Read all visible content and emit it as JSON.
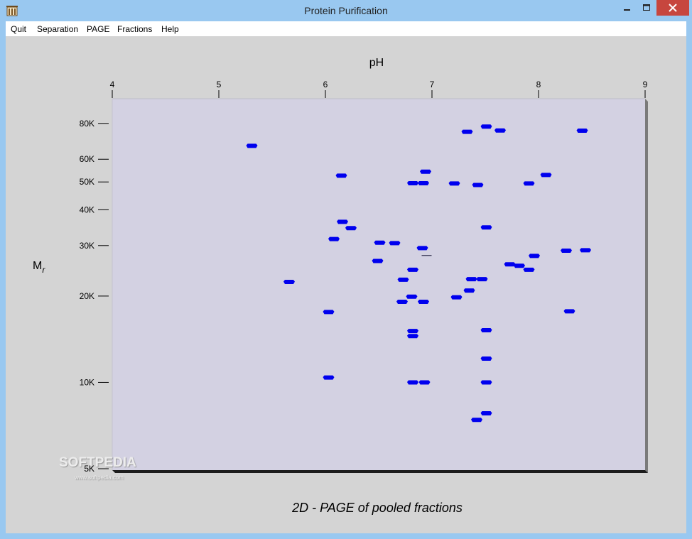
{
  "window": {
    "title": "Protein Purification"
  },
  "icons": {
    "app": "protein-app-icon",
    "minimize": "minimize-icon",
    "maximize": "maximize-icon",
    "close": "close-icon"
  },
  "menu": {
    "items": [
      {
        "label": "Quit"
      },
      {
        "label": "Separation"
      },
      {
        "label": "PAGE"
      },
      {
        "label": "Fractions"
      },
      {
        "label": "Help"
      }
    ]
  },
  "watermark": {
    "text": "SOFTPEDIA",
    "sub": "www.softpedia.com"
  },
  "chart_data": {
    "type": "scatter",
    "title": "2D - PAGE of pooled fractions",
    "xlabel": "pH",
    "ylabel": "M",
    "ylabel_sub": "r",
    "xlim": [
      4,
      9
    ],
    "ylim_log": [
      5000,
      100000
    ],
    "y_scale": "log",
    "x_ticks": [
      {
        "value": 4,
        "label": "4"
      },
      {
        "value": 5,
        "label": "5"
      },
      {
        "value": 6,
        "label": "6"
      },
      {
        "value": 7,
        "label": "7"
      },
      {
        "value": 8,
        "label": "8"
      },
      {
        "value": 9,
        "label": "9"
      }
    ],
    "y_ticks": [
      {
        "value": 80000,
        "label": "80K"
      },
      {
        "value": 60000,
        "label": "60K"
      },
      {
        "value": 50000,
        "label": "50K"
      },
      {
        "value": 40000,
        "label": "40K"
      },
      {
        "value": 30000,
        "label": "30K"
      },
      {
        "value": 20000,
        "label": "20K"
      },
      {
        "value": 10000,
        "label": "10K"
      },
      {
        "value": 5000,
        "label": "5K"
      }
    ],
    "spot_color": "#0000ee",
    "plot_background": "#d3d1e2",
    "spots": [
      {
        "x": 5.31,
        "y": 66800
      },
      {
        "x": 7.33,
        "y": 74800
      },
      {
        "x": 7.51,
        "y": 78000
      },
      {
        "x": 7.64,
        "y": 75600
      },
      {
        "x": 8.41,
        "y": 75500
      },
      {
        "x": 6.15,
        "y": 52600
      },
      {
        "x": 6.94,
        "y": 54300
      },
      {
        "x": 8.07,
        "y": 52900
      },
      {
        "x": 6.82,
        "y": 49500
      },
      {
        "x": 6.92,
        "y": 49500
      },
      {
        "x": 7.21,
        "y": 49400
      },
      {
        "x": 7.43,
        "y": 48800
      },
      {
        "x": 7.91,
        "y": 49400
      },
      {
        "x": 6.16,
        "y": 36300
      },
      {
        "x": 6.24,
        "y": 34500
      },
      {
        "x": 7.51,
        "y": 34700
      },
      {
        "x": 6.08,
        "y": 31600
      },
      {
        "x": 6.51,
        "y": 30700
      },
      {
        "x": 6.65,
        "y": 30600
      },
      {
        "x": 6.91,
        "y": 29400
      },
      {
        "x": 8.26,
        "y": 28800
      },
      {
        "x": 8.44,
        "y": 28900
      },
      {
        "x": 7.96,
        "y": 27600
      },
      {
        "x": 6.49,
        "y": 26500
      },
      {
        "x": 7.73,
        "y": 25800
      },
      {
        "x": 7.82,
        "y": 25500
      },
      {
        "x": 7.91,
        "y": 24700
      },
      {
        "x": 6.82,
        "y": 24700
      },
      {
        "x": 5.66,
        "y": 22400
      },
      {
        "x": 6.73,
        "y": 22800
      },
      {
        "x": 7.37,
        "y": 22900
      },
      {
        "x": 7.47,
        "y": 22900
      },
      {
        "x": 7.35,
        "y": 20900
      },
      {
        "x": 6.81,
        "y": 19900
      },
      {
        "x": 7.23,
        "y": 19800
      },
      {
        "x": 6.72,
        "y": 19100
      },
      {
        "x": 6.92,
        "y": 19100
      },
      {
        "x": 6.03,
        "y": 17600
      },
      {
        "x": 8.29,
        "y": 17700
      },
      {
        "x": 6.82,
        "y": 15100
      },
      {
        "x": 7.51,
        "y": 15200
      },
      {
        "x": 6.82,
        "y": 14500
      },
      {
        "x": 7.51,
        "y": 12100
      },
      {
        "x": 6.03,
        "y": 10400
      },
      {
        "x": 6.82,
        "y": 10000
      },
      {
        "x": 6.93,
        "y": 10000
      },
      {
        "x": 7.51,
        "y": 10000
      },
      {
        "x": 7.51,
        "y": 7800
      },
      {
        "x": 7.42,
        "y": 7400
      }
    ],
    "marker": {
      "x": 6.95,
      "y": 27700
    }
  }
}
